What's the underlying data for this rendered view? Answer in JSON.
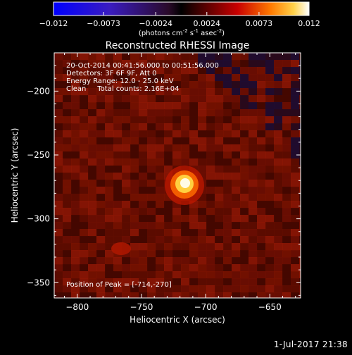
{
  "colorbar": {
    "ticks": [
      "-0.012",
      "-0.0073",
      "-0.0024",
      "0.0024",
      "0.0073",
      "0.012"
    ],
    "range": [
      -0.012,
      0.012
    ],
    "units_label": "(photons cm",
    "units_exp1": "-2",
    "units_mid": " s",
    "units_exp2": "-1",
    "units_tail": " asec",
    "units_exp3": "-2",
    "units_close": ")"
  },
  "plot": {
    "title": "Reconstructed RHESSI Image",
    "info_lines": [
      "20-Oct-2014 00:41:56.000 to 00:51:56.000",
      "Detectors: 3F 6F 9F, Att 0",
      "Energy Range: 12.0 - 25.0 keV",
      "Clean     Total counts: 2.16E+04"
    ],
    "peak_label": "Position of Peak = [-714,-270]",
    "footer": "1-Jul-2017 21:38"
  },
  "chart_data": {
    "type": "heatmap",
    "title": "Reconstructed RHESSI Image",
    "xlabel": "Heliocentric X (arcsec)",
    "ylabel": "Heliocentric Y (arcsec)",
    "xlim": [
      -818,
      -626
    ],
    "ylim": [
      -362,
      -170
    ],
    "x_ticks": [
      -800,
      -750,
      -700,
      -650
    ],
    "y_ticks": [
      -350,
      -300,
      -250,
      -200
    ],
    "x_tick_labels": [
      "−800",
      "−750",
      "−700",
      "−650"
    ],
    "y_tick_labels": [
      "−350",
      "−300",
      "−250",
      "−200"
    ],
    "peak": {
      "x": -714,
      "y": -270
    },
    "colormap": "red-temperature with blue negatives",
    "grid": false
  }
}
